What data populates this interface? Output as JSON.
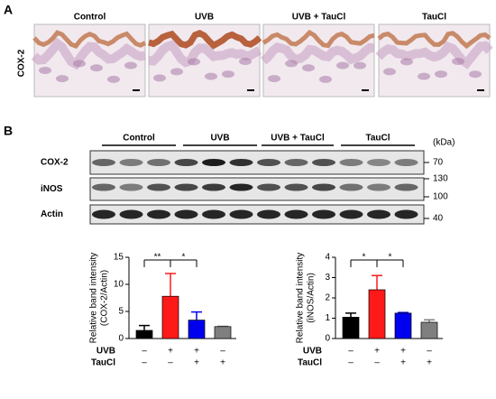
{
  "panels": {
    "a": "A",
    "b": "B"
  },
  "histology": {
    "row_label": "COX-2",
    "groups": [
      "Control",
      "UVB",
      "UVB + TauCl",
      "TauCl"
    ]
  },
  "blot": {
    "groups": [
      "Control",
      "UVB",
      "UVB + TauCl",
      "TauCl"
    ],
    "unit": "(kDa)",
    "rows": [
      {
        "label": "COX-2",
        "markers": [
          "70"
        ]
      },
      {
        "label": "iNOS",
        "markers": [
          "130",
          "100"
        ]
      },
      {
        "label": "Actin",
        "markers": [
          "40"
        ]
      }
    ]
  },
  "chart_data": [
    {
      "type": "bar",
      "ylabel": [
        "Relative band intensity",
        "(COX-2/Actin)"
      ],
      "values": [
        1.5,
        7.8,
        3.4,
        2.2
      ],
      "errors": [
        0.9,
        4.2,
        1.5,
        0.05
      ],
      "colors": [
        "#000000",
        "#ff1a1a",
        "#0000ee",
        "#7f7f7f"
      ],
      "ylim": [
        0,
        15
      ],
      "yticks": [
        0,
        5,
        10,
        15
      ],
      "annotations": [
        {
          "text": "**",
          "between": [
            0,
            1
          ]
        },
        {
          "text": "*",
          "between": [
            1,
            2
          ]
        }
      ],
      "rows": [
        {
          "label": "UVB",
          "values": [
            "–",
            "+",
            "+",
            "–"
          ]
        },
        {
          "label": "TauCl",
          "values": [
            "–",
            "–",
            "+",
            "+"
          ]
        }
      ]
    },
    {
      "type": "bar",
      "ylabel": [
        "Relative band intensity",
        "(iNOS/Actin)"
      ],
      "values": [
        1.05,
        2.4,
        1.25,
        0.8
      ],
      "errors": [
        0.2,
        0.7,
        0.03,
        0.12
      ],
      "colors": [
        "#000000",
        "#ff1a1a",
        "#0000ee",
        "#7f7f7f"
      ],
      "ylim": [
        0,
        4
      ],
      "yticks": [
        0,
        1,
        2,
        3,
        4
      ],
      "annotations": [
        {
          "text": "*",
          "between": [
            0,
            1
          ]
        },
        {
          "text": "*",
          "between": [
            1,
            2
          ]
        }
      ],
      "rows": [
        {
          "label": "UVB",
          "values": [
            "–",
            "+",
            "+",
            "–"
          ]
        },
        {
          "label": "TauCl",
          "values": [
            "–",
            "–",
            "+",
            "+"
          ]
        }
      ]
    }
  ]
}
